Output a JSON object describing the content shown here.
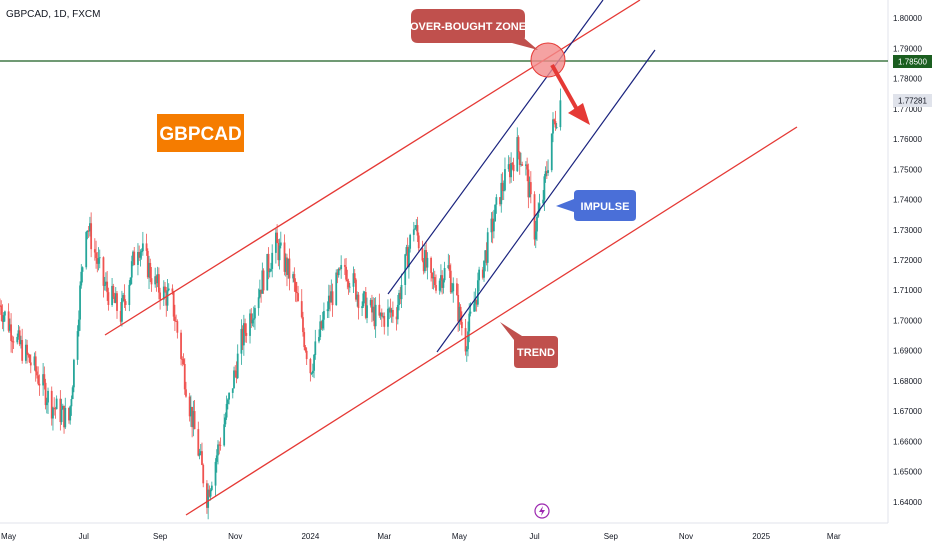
{
  "header": {
    "ticker": "GBPCAD, 1D, FXCM"
  },
  "annotations": {
    "symbol_label": "GBPCAD",
    "overbought": "OVER-BOUGHT ZONE",
    "impulse": "IMPULSE",
    "trend": "TREND"
  },
  "price_badges": {
    "level": "1.78500",
    "last": "1.77281"
  },
  "icons": {
    "flash": "lightning-icon"
  },
  "colors": {
    "up": "#26a69a",
    "down": "#ef5350",
    "trend_line": "#e53935",
    "impulse_line": "#1a237e",
    "level_line": "#1b5e20",
    "symbol_box": "#f57c00",
    "impulse_box": "#4a6fd8",
    "overbought_box": "#c0504d",
    "trend_box": "#c0504d",
    "arrow": "#e53935"
  },
  "chart_data": {
    "type": "candlestick",
    "title": "",
    "x_ticks": [
      "May",
      "Jul",
      "Sep",
      "Nov",
      "2024",
      "Mar",
      "May",
      "Jul",
      "Sep",
      "Nov",
      "2025",
      "Mar"
    ],
    "y_ticks": [
      "1.80000",
      "1.79000",
      "1.78000",
      "1.77000",
      "1.76000",
      "1.75000",
      "1.74000",
      "1.73000",
      "1.72000",
      "1.71000",
      "1.70000",
      "1.69000",
      "1.68000",
      "1.67000",
      "1.66000",
      "1.65000",
      "1.64000"
    ],
    "ylim": [
      1.633,
      1.806
    ],
    "xlim": [
      "2023-04-24",
      "2025-04-14"
    ],
    "horizontal_level": 1.785,
    "last_price": 1.77281,
    "price_path": [
      [
        "2023-04-24",
        1.705
      ],
      [
        "2023-05-08",
        1.693
      ],
      [
        "2023-05-22",
        1.684
      ],
      [
        "2023-06-05",
        1.672
      ],
      [
        "2023-06-19",
        1.667
      ],
      [
        "2023-07-03",
        1.733
      ],
      [
        "2023-07-17",
        1.712
      ],
      [
        "2023-07-31",
        1.702
      ],
      [
        "2023-08-14",
        1.726
      ],
      [
        "2023-08-28",
        1.712
      ],
      [
        "2023-09-11",
        1.706
      ],
      [
        "2023-09-25",
        1.672
      ],
      [
        "2023-10-09",
        1.642
      ],
      [
        "2023-10-23",
        1.666
      ],
      [
        "2023-11-06",
        1.693
      ],
      [
        "2023-11-20",
        1.71
      ],
      [
        "2023-12-04",
        1.725
      ],
      [
        "2023-12-18",
        1.713
      ],
      [
        "2024-01-01",
        1.684
      ],
      [
        "2024-01-15",
        1.705
      ],
      [
        "2024-01-29",
        1.718
      ],
      [
        "2024-02-12",
        1.706
      ],
      [
        "2024-02-26",
        1.7
      ],
      [
        "2024-03-11",
        1.704
      ],
      [
        "2024-03-25",
        1.732
      ],
      [
        "2024-04-08",
        1.712
      ],
      [
        "2024-04-22",
        1.717
      ],
      [
        "2024-05-06",
        1.693
      ],
      [
        "2024-05-20",
        1.718
      ],
      [
        "2024-06-03",
        1.742
      ],
      [
        "2024-06-17",
        1.757
      ],
      [
        "2024-06-24",
        1.75
      ],
      [
        "2024-07-01",
        1.73
      ],
      [
        "2024-07-08",
        1.741
      ],
      [
        "2024-07-15",
        1.762
      ],
      [
        "2024-07-22",
        1.773
      ]
    ]
  }
}
